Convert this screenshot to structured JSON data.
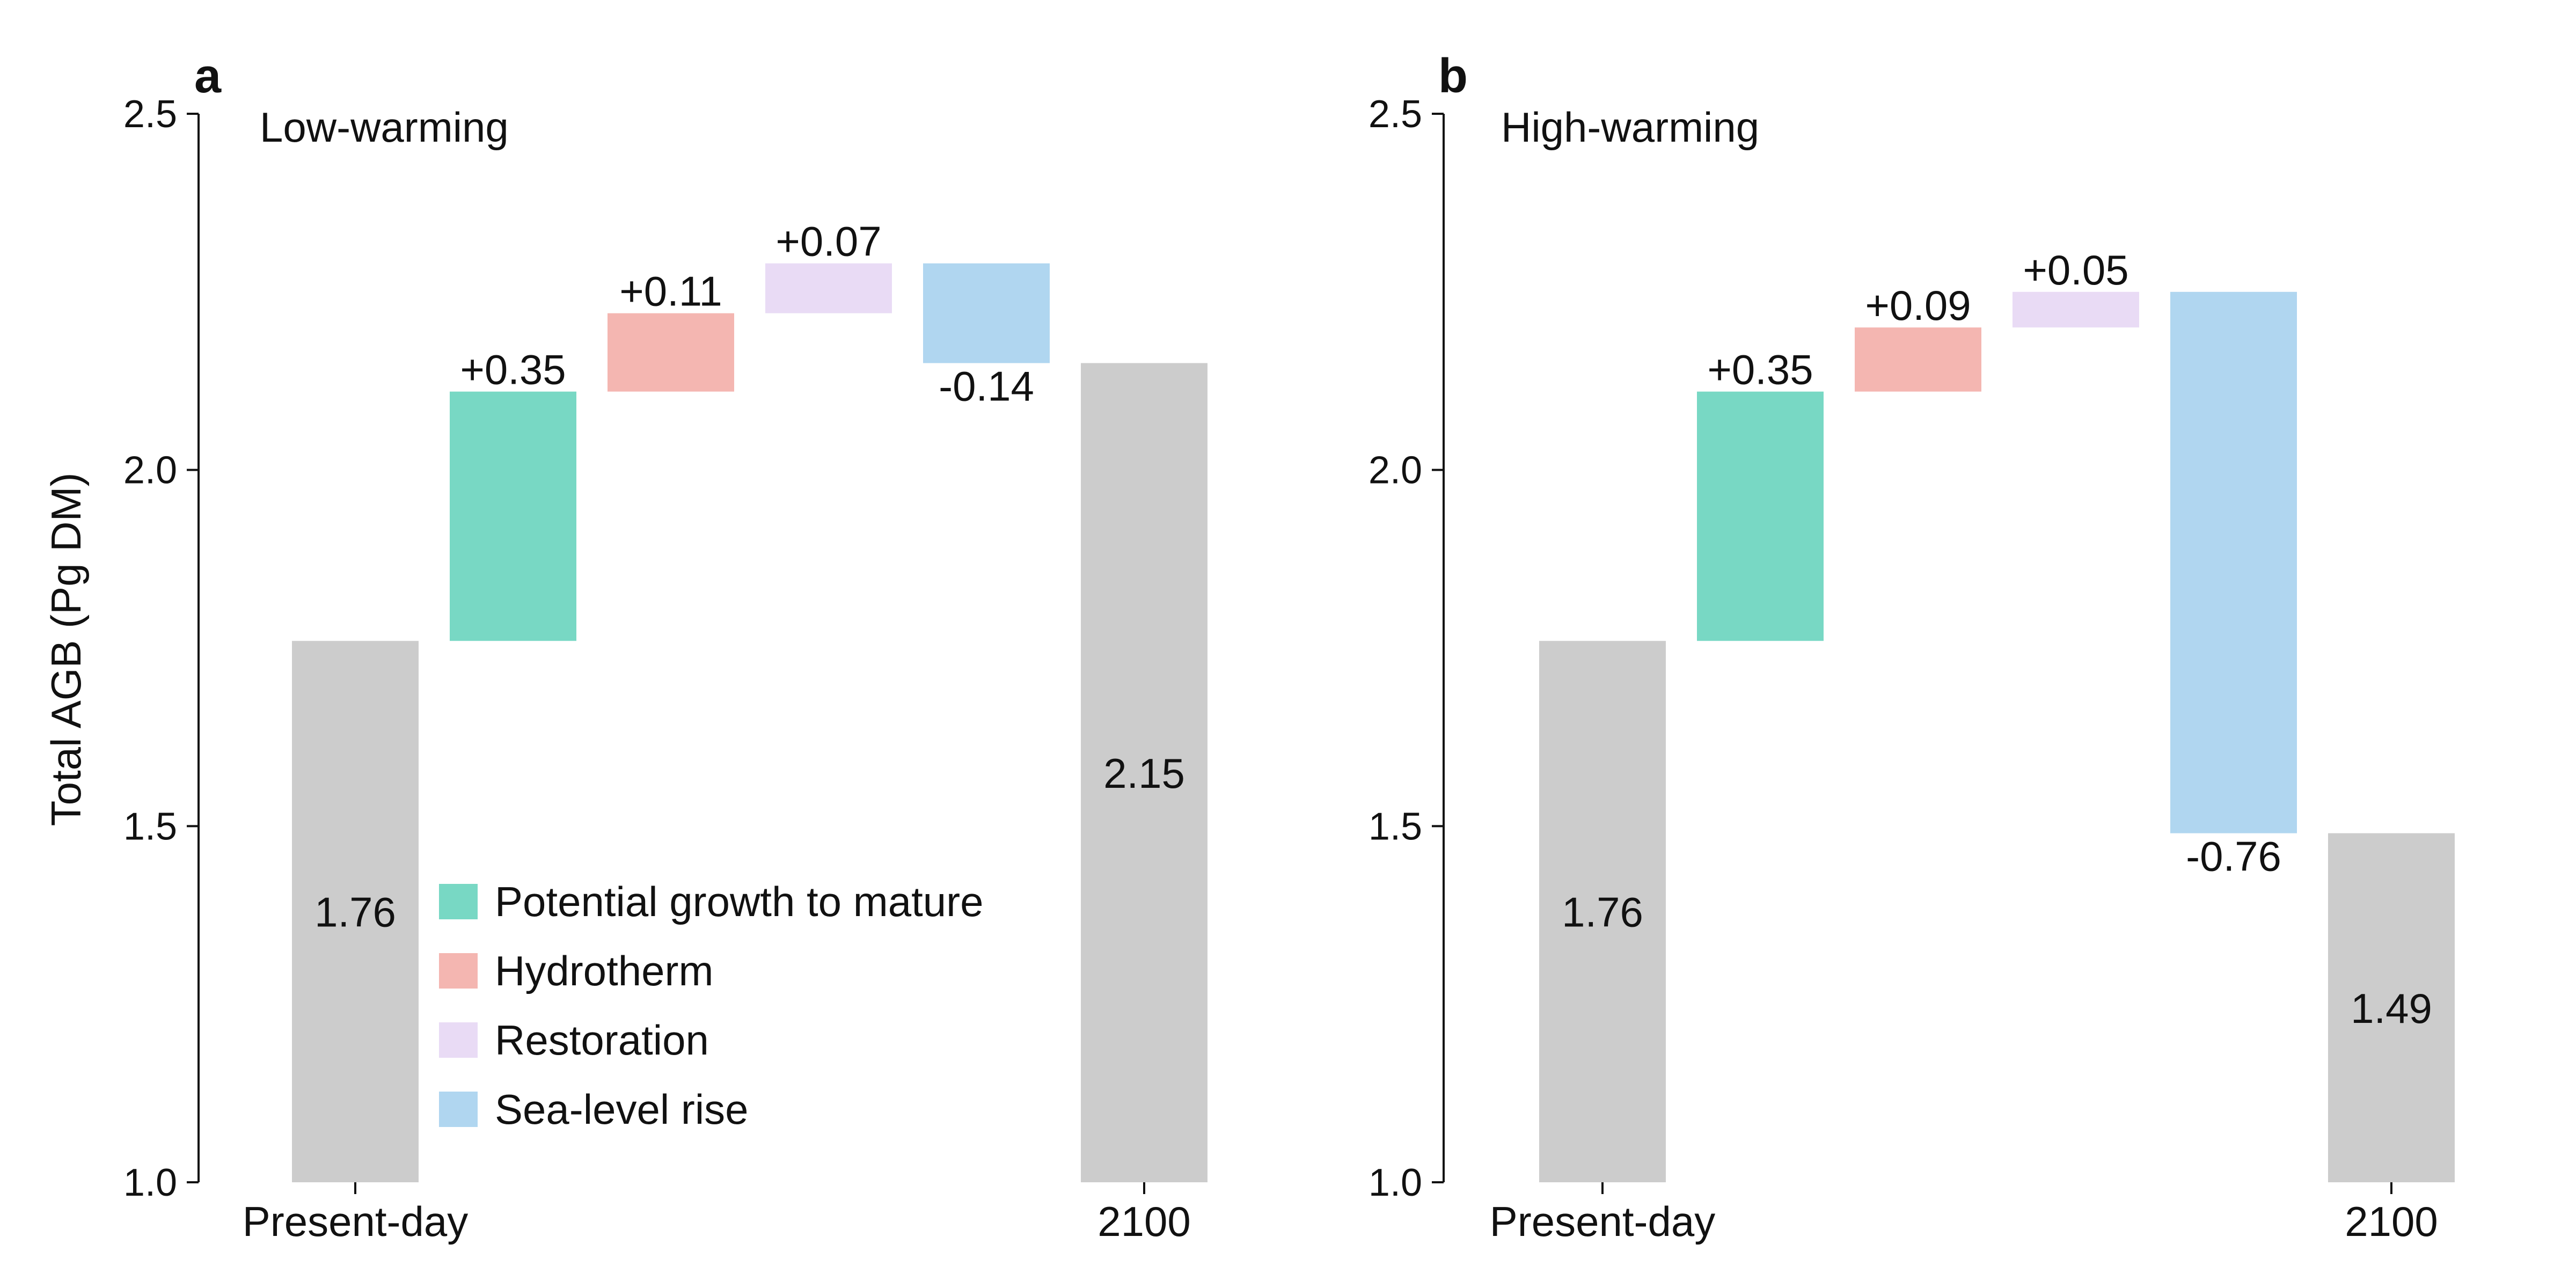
{
  "chart_data": [
    {
      "type": "waterfall",
      "panel": "a",
      "title": "Low-warming",
      "ylabel": "Total AGB (Pg DM)",
      "ylim": [
        1.0,
        2.5
      ],
      "yticks": [
        "1.0",
        "1.5",
        "2.0",
        "2.5"
      ],
      "x_tick_labels": [
        "Present-day",
        "2100"
      ],
      "steps": [
        {
          "kind": "total",
          "category": "Present-day",
          "base": 1.0,
          "top": 1.76,
          "label": "1.76",
          "color": "#cccccc"
        },
        {
          "kind": "delta",
          "series": "Potential growth to mature",
          "base": 1.76,
          "top": 2.11,
          "label": "+0.35",
          "color": "#78d8c4"
        },
        {
          "kind": "delta",
          "series": "Hydrotherm",
          "base": 2.11,
          "top": 2.22,
          "label": "+0.11",
          "color": "#f4b6b1"
        },
        {
          "kind": "delta",
          "series": "Restoration",
          "base": 2.22,
          "top": 2.29,
          "label": "+0.07",
          "color": "#e9dbf5"
        },
        {
          "kind": "delta",
          "series": "Sea-level rise",
          "base": 2.15,
          "top": 2.29,
          "label": "-0.14",
          "color": "#b0d6f0"
        },
        {
          "kind": "total",
          "category": "2100",
          "base": 1.0,
          "top": 2.15,
          "label": "2.15",
          "color": "#cccccc"
        }
      ]
    },
    {
      "type": "waterfall",
      "panel": "b",
      "title": "High-warming",
      "ylim": [
        1.0,
        2.5
      ],
      "yticks": [
        "1.0",
        "1.5",
        "2.0",
        "2.5"
      ],
      "x_tick_labels": [
        "Present-day",
        "2100"
      ],
      "steps": [
        {
          "kind": "total",
          "category": "Present-day",
          "base": 1.0,
          "top": 1.76,
          "label": "1.76",
          "color": "#cccccc"
        },
        {
          "kind": "delta",
          "series": "Potential growth to mature",
          "base": 1.76,
          "top": 2.11,
          "label": "+0.35",
          "color": "#78d8c4"
        },
        {
          "kind": "delta",
          "series": "Hydrotherm",
          "base": 2.11,
          "top": 2.2,
          "label": "+0.09",
          "color": "#f4b6b1"
        },
        {
          "kind": "delta",
          "series": "Restoration",
          "base": 2.2,
          "top": 2.25,
          "label": "+0.05",
          "color": "#e9dbf5"
        },
        {
          "kind": "delta",
          "series": "Sea-level rise",
          "base": 1.49,
          "top": 2.25,
          "label": "-0.76",
          "color": "#b0d6f0"
        },
        {
          "kind": "total",
          "category": "2100",
          "base": 1.0,
          "top": 1.49,
          "label": "1.49",
          "color": "#cccccc"
        }
      ]
    }
  ],
  "legend": {
    "placement": "bottom-center of panel a",
    "entries": [
      {
        "label": "Potential growth to mature",
        "color": "#78d8c4"
      },
      {
        "label": "Hydrotherm",
        "color": "#f4b6b1"
      },
      {
        "label": "Restoration",
        "color": "#e9dbf5"
      },
      {
        "label": "Sea-level rise",
        "color": "#b0d6f0"
      }
    ]
  }
}
